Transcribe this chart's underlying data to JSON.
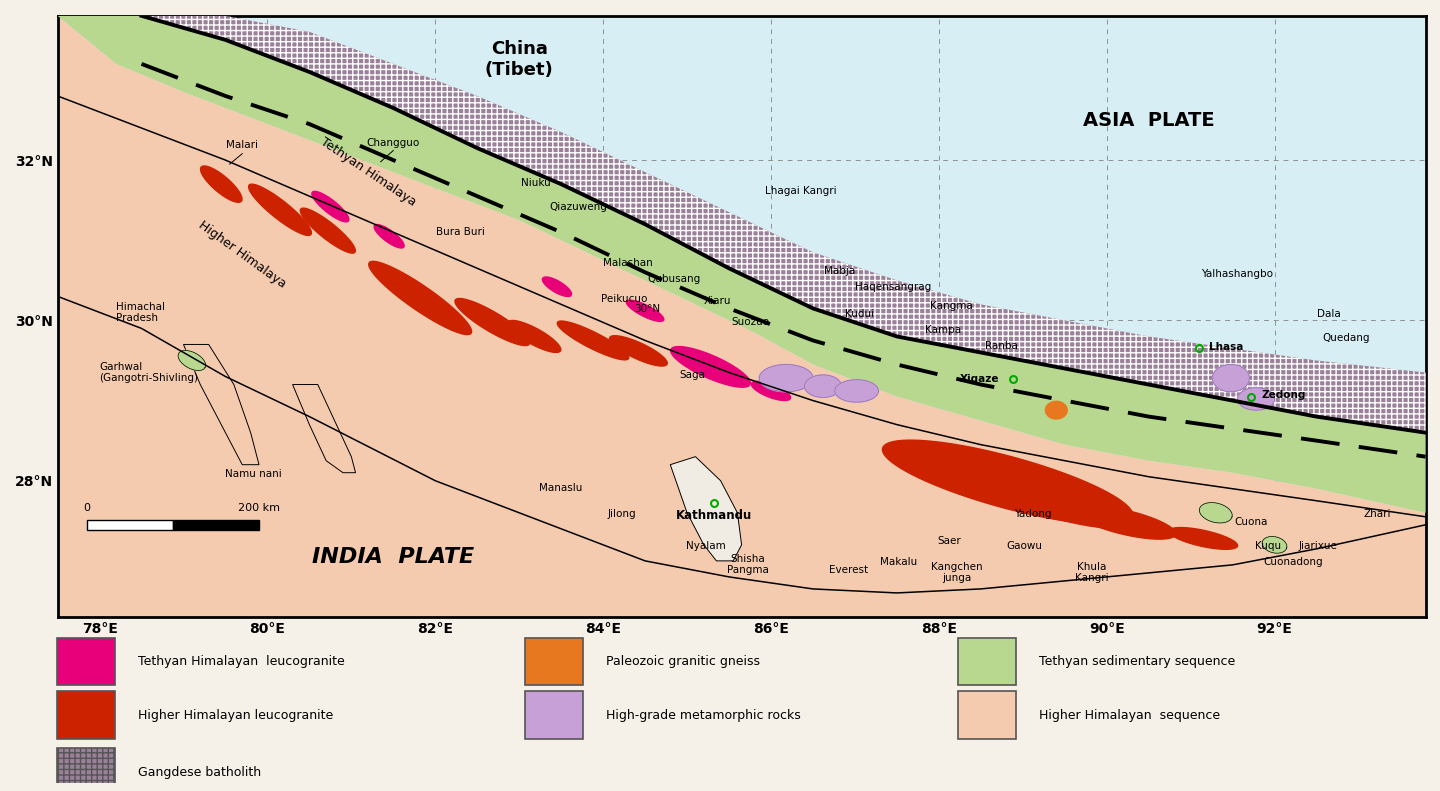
{
  "map_extent": [
    77.5,
    93.8,
    26.3,
    33.8
  ],
  "fig_bg": "#f5f0e8",
  "map_bg": "#d8eef5",
  "colors": {
    "tethyan_leuco": "#e8007a",
    "higher_leuco": "#cc2200",
    "gangdese": "#9a8098",
    "paleozoic": "#e87820",
    "metamorphic": "#c8a0d8",
    "teth_seq": "#b8d890",
    "hh_seq": "#f5cbb0"
  },
  "lat_ticks": [
    28,
    30,
    32
  ],
  "lon_ticks": [
    78,
    80,
    82,
    84,
    86,
    88,
    90,
    92
  ],
  "places": [
    {
      "name": "Malari",
      "lon": 79.7,
      "lat": 32.12,
      "ha": "center",
      "va": "bottom",
      "bold": false
    },
    {
      "name": "Changguo",
      "lon": 81.5,
      "lat": 32.15,
      "ha": "center",
      "va": "bottom",
      "bold": false
    },
    {
      "name": "Niuku",
      "lon": 83.2,
      "lat": 31.65,
      "ha": "center",
      "va": "bottom",
      "bold": false
    },
    {
      "name": "Qiazuweng",
      "lon": 83.7,
      "lat": 31.35,
      "ha": "center",
      "va": "bottom",
      "bold": false
    },
    {
      "name": "Bura Buri",
      "lon": 82.3,
      "lat": 31.1,
      "ha": "center",
      "va": "center",
      "bold": false
    },
    {
      "name": "Malashan",
      "lon": 84.3,
      "lat": 30.65,
      "ha": "center",
      "va": "bottom",
      "bold": false
    },
    {
      "name": "Qubusang",
      "lon": 84.85,
      "lat": 30.45,
      "ha": "center",
      "va": "bottom",
      "bold": false
    },
    {
      "name": "Peikucuo",
      "lon": 84.25,
      "lat": 30.2,
      "ha": "center",
      "va": "bottom",
      "bold": false
    },
    {
      "name": "Xiaru",
      "lon": 85.2,
      "lat": 30.18,
      "ha": "left",
      "va": "bottom",
      "bold": false
    },
    {
      "name": "Suozuo",
      "lon": 85.75,
      "lat": 29.92,
      "ha": "center",
      "va": "bottom",
      "bold": false
    },
    {
      "name": "Lhagai Kangri",
      "lon": 86.35,
      "lat": 31.55,
      "ha": "center",
      "va": "bottom",
      "bold": false
    },
    {
      "name": "Mabja",
      "lon": 86.82,
      "lat": 30.55,
      "ha": "center",
      "va": "bottom",
      "bold": false
    },
    {
      "name": "Haqensangrag",
      "lon": 87.45,
      "lat": 30.35,
      "ha": "center",
      "va": "bottom",
      "bold": false
    },
    {
      "name": "Kudui",
      "lon": 87.05,
      "lat": 30.02,
      "ha": "center",
      "va": "bottom",
      "bold": false
    },
    {
      "name": "Kangma",
      "lon": 88.15,
      "lat": 30.12,
      "ha": "center",
      "va": "bottom",
      "bold": false
    },
    {
      "name": "Kampa",
      "lon": 88.05,
      "lat": 29.82,
      "ha": "center",
      "va": "bottom",
      "bold": false
    },
    {
      "name": "Ranba",
      "lon": 88.75,
      "lat": 29.62,
      "ha": "center",
      "va": "bottom",
      "bold": false
    },
    {
      "name": "Yalhashangbo",
      "lon": 91.55,
      "lat": 30.52,
      "ha": "center",
      "va": "bottom",
      "bold": false
    },
    {
      "name": "Dala",
      "lon": 92.65,
      "lat": 30.02,
      "ha": "center",
      "va": "bottom",
      "bold": false
    },
    {
      "name": "Quedang",
      "lon": 92.85,
      "lat": 29.72,
      "ha": "center",
      "va": "bottom",
      "bold": false
    },
    {
      "name": "Himachal\nPradesh",
      "lon": 78.2,
      "lat": 30.1,
      "ha": "left",
      "va": "center",
      "bold": false
    },
    {
      "name": "Garhwal\n(Gangotri-Shivling)",
      "lon": 78.0,
      "lat": 29.35,
      "ha": "left",
      "va": "center",
      "bold": false
    },
    {
      "name": "Namu nani",
      "lon": 79.5,
      "lat": 28.08,
      "ha": "left",
      "va": "center",
      "bold": false
    },
    {
      "name": "Manaslu",
      "lon": 83.5,
      "lat": 27.85,
      "ha": "center",
      "va": "bottom",
      "bold": false
    },
    {
      "name": "Jilong",
      "lon": 84.22,
      "lat": 27.52,
      "ha": "center",
      "va": "bottom",
      "bold": false
    },
    {
      "name": "Nyalam",
      "lon": 85.22,
      "lat": 27.12,
      "ha": "center",
      "va": "bottom",
      "bold": false
    },
    {
      "name": "Shisha\nPangma",
      "lon": 85.72,
      "lat": 26.82,
      "ha": "center",
      "va": "bottom",
      "bold": false
    },
    {
      "name": "Everest",
      "lon": 86.92,
      "lat": 26.82,
      "ha": "center",
      "va": "bottom",
      "bold": false
    },
    {
      "name": "Makalu",
      "lon": 87.52,
      "lat": 26.92,
      "ha": "center",
      "va": "bottom",
      "bold": false
    },
    {
      "name": "Saer",
      "lon": 88.12,
      "lat": 27.18,
      "ha": "center",
      "va": "bottom",
      "bold": false
    },
    {
      "name": "Kangchen\njunga",
      "lon": 88.22,
      "lat": 26.72,
      "ha": "center",
      "va": "bottom",
      "bold": false
    },
    {
      "name": "Gaowu",
      "lon": 89.02,
      "lat": 27.12,
      "ha": "center",
      "va": "bottom",
      "bold": false
    },
    {
      "name": "Khula\nKangri",
      "lon": 89.82,
      "lat": 26.72,
      "ha": "center",
      "va": "bottom",
      "bold": false
    },
    {
      "name": "Cuona",
      "lon": 91.72,
      "lat": 27.42,
      "ha": "center",
      "va": "bottom",
      "bold": false
    },
    {
      "name": "Kuqu",
      "lon": 91.92,
      "lat": 27.12,
      "ha": "center",
      "va": "bottom",
      "bold": false
    },
    {
      "name": "Cuonadong",
      "lon": 92.22,
      "lat": 26.92,
      "ha": "center",
      "va": "bottom",
      "bold": false
    },
    {
      "name": "Jiarixue",
      "lon": 92.52,
      "lat": 27.12,
      "ha": "center",
      "va": "bottom",
      "bold": false
    },
    {
      "name": "Zhari",
      "lon": 93.22,
      "lat": 27.52,
      "ha": "center",
      "va": "bottom",
      "bold": false
    },
    {
      "name": "Yadong",
      "lon": 89.12,
      "lat": 27.52,
      "ha": "center",
      "va": "bottom",
      "bold": false
    },
    {
      "name": "Saga",
      "lon": 85.22,
      "lat": 29.32,
      "ha": "right",
      "va": "center",
      "bold": false
    },
    {
      "name": "Xigaze",
      "lon": 88.25,
      "lat": 29.27,
      "ha": "left",
      "va": "center",
      "bold": true
    },
    {
      "name": "Zedong",
      "lon": 91.85,
      "lat": 29.07,
      "ha": "left",
      "va": "center",
      "bold": true
    },
    {
      "name": "Lhasa",
      "lon": 91.22,
      "lat": 29.67,
      "ha": "left",
      "va": "center",
      "bold": true
    }
  ],
  "circle_markers": [
    {
      "lon": 88.88,
      "lat": 29.27,
      "color": "#ffffff"
    },
    {
      "lon": 91.1,
      "lat": 29.65,
      "color": "#00aa00"
    },
    {
      "lon": 91.72,
      "lat": 29.05,
      "color": "#ffffff"
    },
    {
      "lon": 85.32,
      "lat": 27.72,
      "color": "#00aa00"
    }
  ],
  "kathmandu": {
    "lon": 85.32,
    "lat": 27.65
  },
  "legend_rows": [
    [
      {
        "color": "#e8007a",
        "label": "Tethyan Himalayan  leucogranite",
        "hatch": null
      },
      {
        "color": "#e87820",
        "label": "Paleozoic granitic gneiss",
        "hatch": null
      },
      {
        "color": "#b8d890",
        "label": "Tethyan sedimentary sequence",
        "hatch": null
      }
    ],
    [
      {
        "color": "#cc2200",
        "label": "Higher Himalayan leucogranite",
        "hatch": null
      },
      {
        "color": "#c8a0d8",
        "label": "High-grade metamorphic rocks",
        "hatch": null
      },
      {
        "color": "#f5cbb0",
        "label": "Higher Himalayan  sequence",
        "hatch": null
      }
    ],
    [
      {
        "color": "#9a8098",
        "label": "Gangdese batholith",
        "hatch": "+++"
      }
    ]
  ]
}
